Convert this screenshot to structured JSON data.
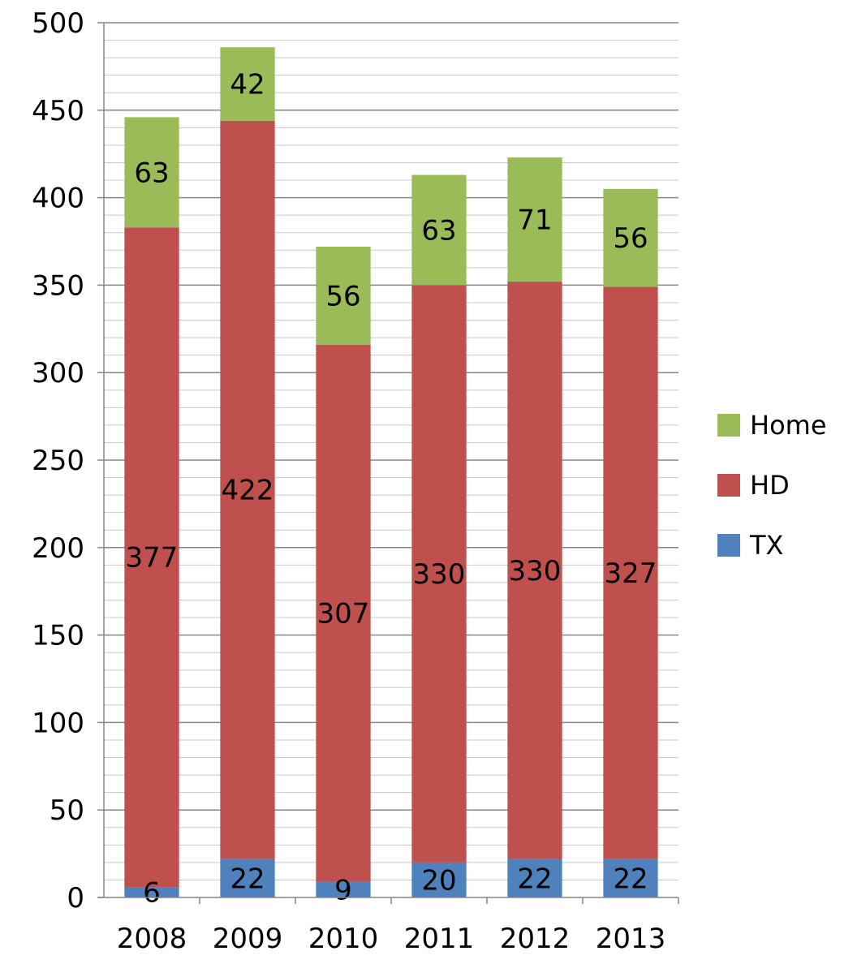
{
  "chart_data": {
    "type": "bar",
    "stacked": true,
    "categories": [
      "2008",
      "2009",
      "2010",
      "2011",
      "2012",
      "2013"
    ],
    "series": [
      {
        "name": "TX",
        "values": [
          6,
          22,
          9,
          20,
          22,
          22
        ],
        "color": "#4F81BD"
      },
      {
        "name": "HD",
        "values": [
          377,
          422,
          307,
          330,
          330,
          327
        ],
        "color": "#C0504D"
      },
      {
        "name": "Home",
        "values": [
          63,
          42,
          56,
          63,
          71,
          56
        ],
        "color": "#9BBB59"
      }
    ],
    "ylim": [
      0,
      500
    ],
    "y_major_ticks": [
      0,
      50,
      100,
      150,
      200,
      250,
      300,
      350,
      400,
      450,
      500
    ],
    "y_minor_step": 10,
    "grid": true,
    "legend_position": "right",
    "legend_order": [
      "Home",
      "HD",
      "TX"
    ],
    "data_labels": true
  }
}
